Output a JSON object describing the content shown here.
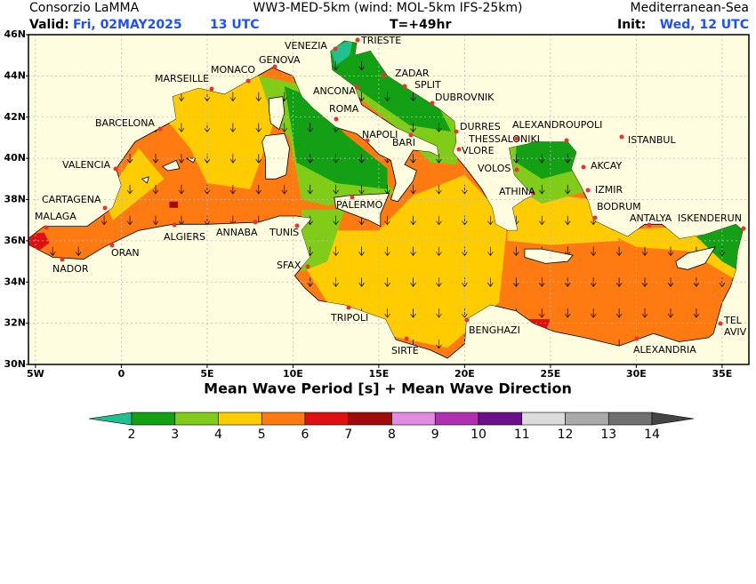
{
  "header": {
    "org": "Consorzio LaMMA",
    "model": "WW3-MED-5km (wind: MOL-5km IFS-25km)",
    "region": "Mediterranean-Sea",
    "valid_label": "Valid:",
    "valid_date": "Fri, 02MAY2025",
    "valid_time": "13 UTC",
    "step": "T=+49hr",
    "init_label": "Init:",
    "init_date": "Wed, 12 UTC"
  },
  "map": {
    "title": "Mean Wave Period [s] + Mean Wave Direction",
    "xlim": [
      -5.41,
      36.56
    ],
    "ylim": [
      30,
      46
    ],
    "xticks": [
      {
        "value": -5,
        "label": "5W"
      },
      0,
      {
        "value": 5,
        "label": "5E"
      },
      {
        "value": 10,
        "label": "10E"
      },
      {
        "value": 15,
        "label": "15E"
      },
      {
        "value": 20,
        "label": "20E"
      },
      {
        "value": 25,
        "label": "25E"
      },
      {
        "value": 30,
        "label": "30E"
      },
      {
        "value": 35,
        "label": "35E"
      }
    ],
    "yticks": [
      {
        "value": 30,
        "label": "30N"
      },
      {
        "value": 32,
        "label": "32N"
      },
      {
        "value": 34,
        "label": "34N"
      },
      {
        "value": 36,
        "label": "36N"
      },
      {
        "value": 38,
        "label": "38N"
      },
      {
        "value": 40,
        "label": "40N"
      },
      {
        "value": 42,
        "label": "42N"
      },
      {
        "value": 44,
        "label": "44N"
      },
      {
        "value": 46,
        "label": "46N"
      }
    ],
    "cities": [
      "VENEZIA",
      "TRIESTE",
      "ZADAR",
      "SPLIT",
      "DUBROVNIK",
      "ANCONA",
      "ROMA",
      "NAPOLI",
      "BARI",
      "DURRES",
      "VLORE",
      "THESSALONIKI",
      "ALEXANDROUPOLI",
      "ISTANBUL",
      "VOLOS",
      "AKCAY",
      "IZMIR",
      "ATHINA",
      "BODRUM",
      "ANTALYA",
      "ISKENDERUN",
      "TEL AVIV",
      "ALEXANDRIA",
      "BENGHAZI",
      "SIRTE",
      "TRIPOLI",
      "SFAX",
      "TUNIS",
      "PALERMO",
      "ANNABA",
      "ALGIERS",
      "ORAN",
      "NADOR",
      "MALAGA",
      "CARTAGENA",
      "VALENCIA",
      "BARCELONA",
      "MARSEILLE",
      "MONACO",
      "GENOVA"
    ]
  },
  "colorbar": {
    "ticks": [
      2,
      3,
      4,
      5,
      6,
      7,
      8,
      9,
      10,
      11,
      12,
      13,
      14
    ],
    "colors": [
      "#14a014",
      "#80cc18",
      "#ffcc00",
      "#ff7a10",
      "#e01010",
      "#a00a0a",
      "#e08ce0",
      "#b030b0",
      "#6a108a",
      "#dcdcdc",
      "#aaaaaa",
      "#707070"
    ],
    "under_color": "#20c090",
    "over_color": "#444444"
  }
}
